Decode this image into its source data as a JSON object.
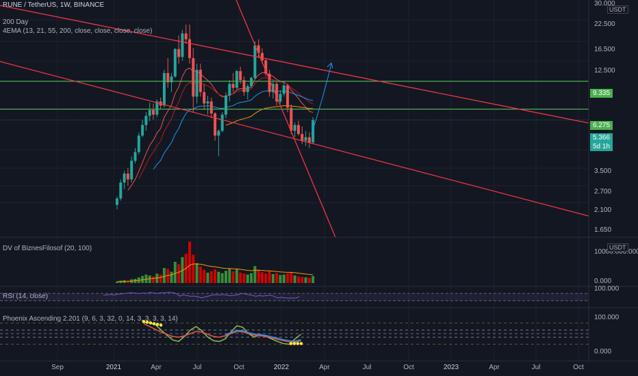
{
  "header": {
    "symbol_line": "RUNE / TetherUS, 1W, BINANCE",
    "indicator_1": "200 Day",
    "indicator_2": "4EMA (13, 21, 55, 200, close, close, close, close)"
  },
  "price_axis": {
    "unit": "USDT",
    "ticks": [
      "30.000",
      "22.500",
      "16.500",
      "12.500",
      "3.500",
      "2.700",
      "2.100",
      "1.650"
    ],
    "tags": [
      {
        "text": "9.335",
        "color": "#4caf50"
      },
      {
        "text": "6.275",
        "color": "#4caf50"
      },
      {
        "text": "5.366",
        "color": "#26a69a"
      },
      {
        "text": "5d 1h",
        "color": "#26a69a"
      }
    ]
  },
  "panes": {
    "volume": {
      "title": "DV of BiznesFilosof (20, 100)",
      "unit": "USDT",
      "top_tick": "10000.000.000",
      "bottom_tick": "0.000"
    },
    "rsi": {
      "title": "RSI (14, close)",
      "top_tick": "100.000"
    },
    "phoenix": {
      "title": "Phoenix Ascending 2.201 (9, 6, 3, 32, 0, 14, 3, 3, 3, 3, 14)",
      "top_tick": "100.000",
      "bottom_tick": "0.000"
    }
  },
  "time_axis": [
    "Sep",
    "2021",
    "Apr",
    "Jul",
    "Oct",
    "2022",
    "Apr",
    "Jul",
    "Oct",
    "2023",
    "Apr",
    "Jul",
    "Oct"
  ],
  "chart_data": {
    "type": "candlestick",
    "title": "RUNE / TetherUS, 1W, BINANCE",
    "y_scale": "log",
    "ylim": [
      1.5,
      30
    ],
    "horizontal_levels": [
      9.335,
      6.275
    ],
    "last_price": 5.366,
    "series": [
      {
        "name": "RUNE/USDT weekly",
        "values": [
          [
            1.6,
            1.8,
            1.5,
            1.75
          ],
          [
            1.75,
            2.3,
            1.7,
            2.2
          ],
          [
            2.2,
            2.6,
            2.0,
            2.5
          ],
          [
            2.5,
            2.7,
            2.1,
            2.3
          ],
          [
            2.3,
            3.2,
            2.2,
            3.0
          ],
          [
            3.0,
            3.6,
            2.9,
            3.4
          ],
          [
            3.4,
            4.5,
            3.3,
            4.3
          ],
          [
            4.3,
            5.4,
            4.2,
            5.0
          ],
          [
            5.0,
            6.0,
            4.6,
            5.7
          ],
          [
            5.7,
            6.9,
            5.3,
            6.2
          ],
          [
            6.2,
            6.8,
            5.4,
            5.8
          ],
          [
            5.8,
            7.2,
            5.6,
            7.0
          ],
          [
            7.0,
            7.4,
            6.3,
            6.6
          ],
          [
            6.6,
            11.0,
            6.4,
            10.5
          ],
          [
            10.5,
            13.0,
            8.5,
            9.2
          ],
          [
            9.2,
            10.5,
            8.0,
            10.0
          ],
          [
            10.0,
            15.0,
            9.8,
            14.8
          ],
          [
            14.8,
            18.0,
            12.0,
            13.2
          ],
          [
            13.2,
            19.5,
            12.5,
            18.5
          ],
          [
            18.5,
            21.0,
            16.0,
            17.0
          ],
          [
            17.0,
            21.0,
            12.0,
            13.0
          ],
          [
            13.0,
            15.0,
            6.0,
            7.5
          ],
          [
            7.5,
            12.0,
            6.8,
            11.0
          ],
          [
            11.0,
            12.0,
            7.5,
            8.0
          ],
          [
            8.0,
            9.0,
            6.2,
            6.8
          ],
          [
            6.8,
            7.6,
            5.8,
            7.0
          ],
          [
            7.0,
            7.4,
            5.5,
            5.9
          ],
          [
            5.9,
            6.0,
            4.0,
            4.3
          ],
          [
            4.3,
            4.7,
            3.2,
            4.6
          ],
          [
            4.6,
            6.0,
            4.5,
            5.8
          ],
          [
            5.8,
            8.0,
            5.5,
            7.6
          ],
          [
            7.6,
            9.5,
            7.0,
            9.0
          ],
          [
            9.0,
            10.5,
            8.0,
            8.5
          ],
          [
            8.5,
            11.0,
            8.3,
            10.8
          ],
          [
            10.8,
            11.5,
            9.0,
            9.5
          ],
          [
            9.5,
            10.0,
            7.6,
            8.0
          ],
          [
            8.0,
            9.0,
            7.2,
            8.7
          ],
          [
            8.7,
            10.0,
            8.5,
            9.8
          ],
          [
            9.8,
            16.5,
            9.6,
            15.6
          ],
          [
            15.6,
            17.0,
            13.0,
            14.0
          ],
          [
            14.0,
            15.0,
            12.0,
            12.6
          ],
          [
            12.6,
            13.0,
            10.0,
            10.4
          ],
          [
            10.4,
            11.0,
            7.5,
            8.0
          ],
          [
            8.0,
            9.5,
            7.3,
            9.0
          ],
          [
            9.0,
            9.4,
            6.6,
            7.0
          ],
          [
            7.0,
            8.2,
            6.8,
            7.8
          ],
          [
            7.8,
            9.2,
            7.5,
            8.8
          ],
          [
            8.8,
            9.0,
            6.0,
            6.4
          ],
          [
            6.4,
            6.7,
            4.4,
            4.6
          ],
          [
            4.6,
            5.2,
            4.2,
            5.0
          ],
          [
            5.0,
            5.3,
            4.3,
            4.4
          ],
          [
            4.4,
            4.9,
            3.8,
            4.0
          ],
          [
            4.0,
            4.6,
            3.7,
            4.2
          ],
          [
            4.2,
            4.5,
            3.6,
            3.9
          ],
          [
            3.9,
            5.6,
            3.8,
            5.366
          ]
        ]
      }
    ],
    "volume": [
      0.3,
      0.5,
      0.6,
      0.5,
      0.8,
      0.9,
      1.2,
      1.5,
      1.8,
      1.6,
      1.4,
      2.0,
      1.8,
      3.2,
      3.0,
      2.4,
      4.5,
      4.0,
      5.5,
      6.2,
      8.8,
      6.0,
      4.2,
      3.5,
      2.8,
      2.2,
      2.5,
      2.9,
      2.4,
      2.1,
      2.6,
      3.0,
      2.5,
      2.9,
      2.2,
      2.0,
      1.8,
      2.1,
      3.6,
      2.8,
      2.3,
      2.0,
      2.5,
      1.9,
      2.1,
      1.7,
      1.8,
      2.0,
      2.3,
      1.6,
      1.4,
      1.3,
      1.2,
      1.1,
      1.5
    ],
    "rsi": [
      60,
      62,
      64,
      61,
      66,
      67,
      70,
      72,
      73,
      71,
      69,
      72,
      70,
      76,
      72,
      70,
      74,
      73,
      76,
      75,
      70,
      55,
      62,
      58,
      54,
      55,
      52,
      46,
      50,
      55,
      60,
      63,
      61,
      64,
      60,
      57,
      59,
      62,
      70,
      67,
      63,
      59,
      54,
      58,
      55,
      58,
      60,
      54,
      45,
      48,
      46,
      44,
      45,
      44,
      52
    ],
    "phoenix": {
      "line_a": [
        82,
        80,
        75,
        60,
        45,
        32,
        28,
        42,
        60,
        70,
        58,
        40,
        30,
        28,
        35,
        55,
        72,
        68,
        50,
        40,
        48,
        42,
        35,
        28,
        22,
        20,
        35,
        48
      ],
      "line_b": [
        78,
        70,
        62,
        54,
        48,
        42,
        40,
        44,
        50,
        56,
        54,
        48,
        42,
        40,
        44,
        50,
        56,
        55,
        50,
        46,
        44,
        42,
        38,
        34,
        30,
        27,
        26,
        30
      ]
    }
  }
}
